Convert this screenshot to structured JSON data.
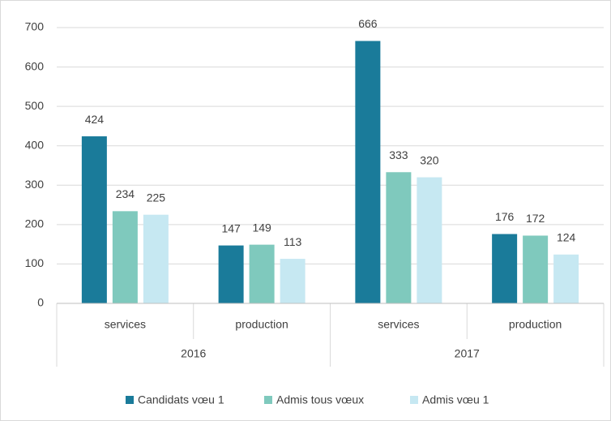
{
  "chart_data": {
    "type": "bar",
    "categories": [
      "services",
      "production",
      "services",
      "production"
    ],
    "category_groups": [
      "2016",
      "2017"
    ],
    "series": [
      {
        "name": "Candidats vœu 1",
        "color": "#1a7b9a",
        "values": [
          424,
          147,
          666,
          176
        ]
      },
      {
        "name": "Admis tous vœux",
        "color": "#7fc9bd",
        "values": [
          234,
          149,
          333,
          172
        ]
      },
      {
        "name": "Admis vœu 1",
        "color": "#c6e8f2",
        "values": [
          225,
          113,
          320,
          124
        ]
      }
    ],
    "ylim": [
      0,
      700
    ],
    "yticks": [
      0,
      100,
      200,
      300,
      400,
      500,
      600,
      700
    ],
    "grid": true,
    "legend": "bottom"
  }
}
